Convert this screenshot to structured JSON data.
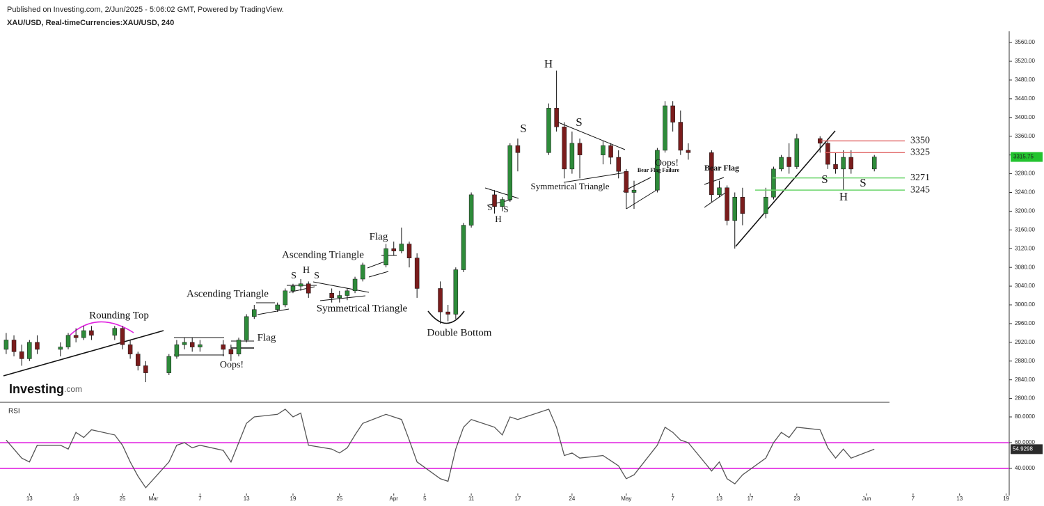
{
  "header": {
    "published": "Published on Investing.com, 2/Jun/2025 - 5:06:02 GMT, Powered by TradingView."
  },
  "logo": {
    "brand": "Investing",
    "suffix": ".com"
  },
  "chart_data": [
    {
      "type": "candlestick",
      "title": "XAU/USD, Real-timeCurrencies:XAU/USD, 240",
      "x": [
        0,
        1,
        2,
        3,
        4,
        7,
        8,
        9,
        10,
        11,
        14,
        15,
        16,
        17,
        18,
        21,
        22,
        23,
        24,
        25,
        28,
        29,
        30,
        31,
        32,
        35,
        36,
        37,
        38,
        39,
        42,
        43,
        44,
        45,
        46,
        49,
        50,
        51,
        52,
        53,
        56,
        57,
        58,
        59,
        60,
        63,
        64,
        65,
        66,
        70,
        71,
        72,
        73,
        74,
        77,
        78,
        79,
        80,
        81,
        84,
        85,
        86,
        87,
        88,
        91,
        92,
        93,
        94,
        95,
        98,
        99,
        100,
        101,
        102,
        105,
        106,
        107,
        108,
        109,
        112
      ],
      "open": [
        2905,
        2925,
        2900,
        2885,
        2920,
        2905,
        2910,
        2935,
        2930,
        2945,
        2935,
        2950,
        2915,
        2895,
        2870,
        2855,
        2890,
        2915,
        2920,
        2910,
        2915,
        2905,
        2895,
        2925,
        2975,
        2990,
        3000,
        3030,
        3040,
        3045,
        3025,
        3015,
        3020,
        3030,
        3055,
        3085,
        3120,
        3115,
        3130,
        3100,
        3035,
        2985,
        2980,
        3075,
        3170,
        3235,
        3210,
        3225,
        3340,
        3325,
        3420,
        3380,
        3290,
        3345,
        3320,
        3340,
        3315,
        3285,
        3240,
        3245,
        3330,
        3425,
        3390,
        3330,
        3325,
        3235,
        3250,
        3180,
        3230,
        3195,
        3230,
        3290,
        3315,
        3295,
        3355,
        3345,
        3300,
        3290,
        3315,
        3290
      ],
      "high": [
        2940,
        2935,
        2915,
        2925,
        2935,
        2920,
        2940,
        2950,
        2955,
        2955,
        2955,
        2955,
        2925,
        2900,
        2880,
        2895,
        2925,
        2930,
        2930,
        2925,
        2925,
        2915,
        2930,
        2980,
        3000,
        3005,
        3035,
        3045,
        3055,
        3050,
        3035,
        3030,
        3035,
        3060,
        3090,
        3130,
        3135,
        3165,
        3135,
        3110,
        3050,
        3000,
        3080,
        3175,
        3240,
        3245,
        3230,
        3345,
        3355,
        3430,
        3500,
        3390,
        3370,
        3355,
        3350,
        3345,
        3330,
        3290,
        3265,
        3335,
        3435,
        3435,
        3415,
        3345,
        3330,
        3265,
        3255,
        3240,
        3250,
        3250,
        3295,
        3320,
        3345,
        3365,
        3360,
        3350,
        3325,
        3330,
        3330,
        3320
      ],
      "low": [
        2895,
        2890,
        2870,
        2880,
        2895,
        2890,
        2905,
        2920,
        2925,
        2925,
        2925,
        2905,
        2885,
        2860,
        2835,
        2850,
        2885,
        2905,
        2900,
        2900,
        2890,
        2880,
        2890,
        2920,
        2970,
        2985,
        2995,
        3025,
        3030,
        3015,
        3005,
        3005,
        3010,
        3025,
        3050,
        3080,
        3105,
        3110,
        3080,
        3015,
        2960,
        2965,
        2970,
        3070,
        3165,
        3195,
        3200,
        3220,
        3285,
        3320,
        3370,
        3270,
        3280,
        3270,
        3300,
        3300,
        3270,
        3205,
        3205,
        3240,
        3325,
        3370,
        3320,
        3310,
        3220,
        3230,
        3170,
        3120,
        3170,
        3185,
        3225,
        3285,
        3280,
        3290,
        3325,
        3290,
        3280,
        3245,
        3280,
        3285
      ],
      "close": [
        2925,
        2900,
        2885,
        2920,
        2905,
        2910,
        2935,
        2930,
        2945,
        2935,
        2950,
        2915,
        2895,
        2870,
        2855,
        2890,
        2915,
        2920,
        2910,
        2915,
        2905,
        2895,
        2925,
        2975,
        2990,
        3000,
        3030,
        3040,
        3045,
        3025,
        3015,
        3020,
        3030,
        3055,
        3085,
        3120,
        3115,
        3130,
        3100,
        3035,
        2985,
        2980,
        3075,
        3170,
        3235,
        3210,
        3225,
        3340,
        3325,
        3420,
        3380,
        3290,
        3345,
        3320,
        3340,
        3315,
        3285,
        3240,
        3245,
        3330,
        3425,
        3390,
        3330,
        3325,
        3235,
        3250,
        3180,
        3230,
        3195,
        3230,
        3290,
        3315,
        3295,
        3355,
        3345,
        3300,
        3290,
        3315,
        3290,
        3315.75
      ],
      "up_color": "#2e8b3a",
      "down_color": "#7a1c1c",
      "last_color": "#22c32e",
      "xlim": [
        -0.8,
        129.4
      ],
      "ylim": [
        2792,
        3581
      ],
      "yticks": [
        {
          "value": 2800,
          "label": "2800.00"
        },
        {
          "value": 2840,
          "label": "2840.00"
        },
        {
          "value": 2880,
          "label": "2880.00"
        },
        {
          "value": 2920,
          "label": "2920.00"
        },
        {
          "value": 2960,
          "label": "2960.00"
        },
        {
          "value": 3000,
          "label": "3000.00"
        },
        {
          "value": 3040,
          "label": "3040.00"
        },
        {
          "value": 3080,
          "label": "3080.00"
        },
        {
          "value": 3120,
          "label": "3120.00"
        },
        {
          "value": 3160,
          "label": "3160.00"
        },
        {
          "value": 3200,
          "label": "3200.00"
        },
        {
          "value": 3240,
          "label": "3240.00"
        },
        {
          "value": 3280,
          "label": "3280.00"
        },
        {
          "value": 3320,
          "label": "3320.00"
        },
        {
          "value": 3360,
          "label": "3360.00"
        },
        {
          "value": 3400,
          "label": "3400.00"
        },
        {
          "value": 3440,
          "label": "3440.00"
        },
        {
          "value": 3480,
          "label": "3480.00"
        },
        {
          "value": 3520,
          "label": "3520.00"
        },
        {
          "value": 3560,
          "label": "3560.00"
        }
      ],
      "levels": [
        3350,
        3325,
        3271,
        3245
      ],
      "level_colors": [
        "#e06666",
        "#e06666",
        "#6ad46a",
        "#6ad46a"
      ],
      "annotations": [
        "Rounding Top",
        "Flag",
        "Oops!",
        "Ascending Triangle",
        "S",
        "H",
        "S",
        "Ascending Triangle",
        "Symmetrical Triangle",
        "Flag",
        "Double Bottom",
        "S",
        "H",
        "S",
        "S",
        "H",
        "S",
        "Symmetrical Triangle",
        "Bear  Flag Failure",
        "Oops!",
        "Bear Flag",
        "S",
        "H",
        "S"
      ]
    },
    {
      "type": "line",
      "title": "RSI",
      "x": [
        0,
        1,
        2,
        3,
        4,
        7,
        8,
        9,
        10,
        11,
        14,
        15,
        16,
        17,
        18,
        21,
        22,
        23,
        24,
        25,
        28,
        29,
        30,
        31,
        32,
        35,
        36,
        37,
        38,
        39,
        42,
        43,
        44,
        45,
        46,
        49,
        50,
        51,
        52,
        53,
        56,
        57,
        58,
        59,
        60,
        63,
        64,
        65,
        66,
        70,
        71,
        72,
        73,
        74,
        77,
        78,
        79,
        80,
        81,
        84,
        85,
        86,
        87,
        88,
        91,
        92,
        93,
        94,
        95,
        98,
        99,
        100,
        101,
        102,
        105,
        106,
        107,
        108,
        109,
        112
      ],
      "values": [
        62,
        55,
        48,
        45,
        58,
        58,
        55,
        68,
        64,
        70,
        66,
        58,
        45,
        34,
        25,
        45,
        58,
        60,
        56,
        58,
        54,
        45,
        60,
        75,
        80,
        82,
        86,
        80,
        83,
        58,
        55,
        52,
        56,
        66,
        75,
        82,
        80,
        78,
        62,
        45,
        32,
        30,
        55,
        72,
        78,
        72,
        66,
        80,
        78,
        86,
        72,
        50,
        52,
        48,
        50,
        46,
        42,
        32,
        35,
        58,
        72,
        68,
        62,
        60,
        38,
        45,
        32,
        28,
        35,
        48,
        60,
        68,
        64,
        72,
        70,
        56,
        48,
        55,
        48,
        54.9298
      ],
      "color": "#555555",
      "xlim": [
        -0.8,
        129.4
      ],
      "ylim": [
        18.9,
        89.2
      ],
      "yticks": [
        {
          "value": 40,
          "label": "40.0000"
        },
        {
          "value": 60,
          "label": "60.0000"
        },
        {
          "value": 80,
          "label": "80.0000"
        }
      ],
      "levels": [
        40,
        60
      ],
      "level_color": "#e020e0",
      "xticks": [
        {
          "value": 3,
          "label": "13"
        },
        {
          "value": 9,
          "label": "19"
        },
        {
          "value": 15,
          "label": "25"
        },
        {
          "value": 19,
          "label": "Mar"
        },
        {
          "value": 25,
          "label": "7"
        },
        {
          "value": 31,
          "label": "13"
        },
        {
          "value": 37,
          "label": "19"
        },
        {
          "value": 43,
          "label": "25"
        },
        {
          "value": 50,
          "label": "Apr"
        },
        {
          "value": 54,
          "label": "5"
        },
        {
          "value": 60,
          "label": "11"
        },
        {
          "value": 66,
          "label": "17"
        },
        {
          "value": 73,
          "label": "24"
        },
        {
          "value": 80,
          "label": "May"
        },
        {
          "value": 86,
          "label": "7"
        },
        {
          "value": 92,
          "label": "13"
        },
        {
          "value": 96,
          "label": "17"
        },
        {
          "value": 102,
          "label": "23"
        },
        {
          "value": 111,
          "label": "Jun"
        },
        {
          "value": 117,
          "label": "7"
        },
        {
          "value": 123,
          "label": "13"
        },
        {
          "value": 129,
          "label": "19"
        }
      ]
    }
  ]
}
